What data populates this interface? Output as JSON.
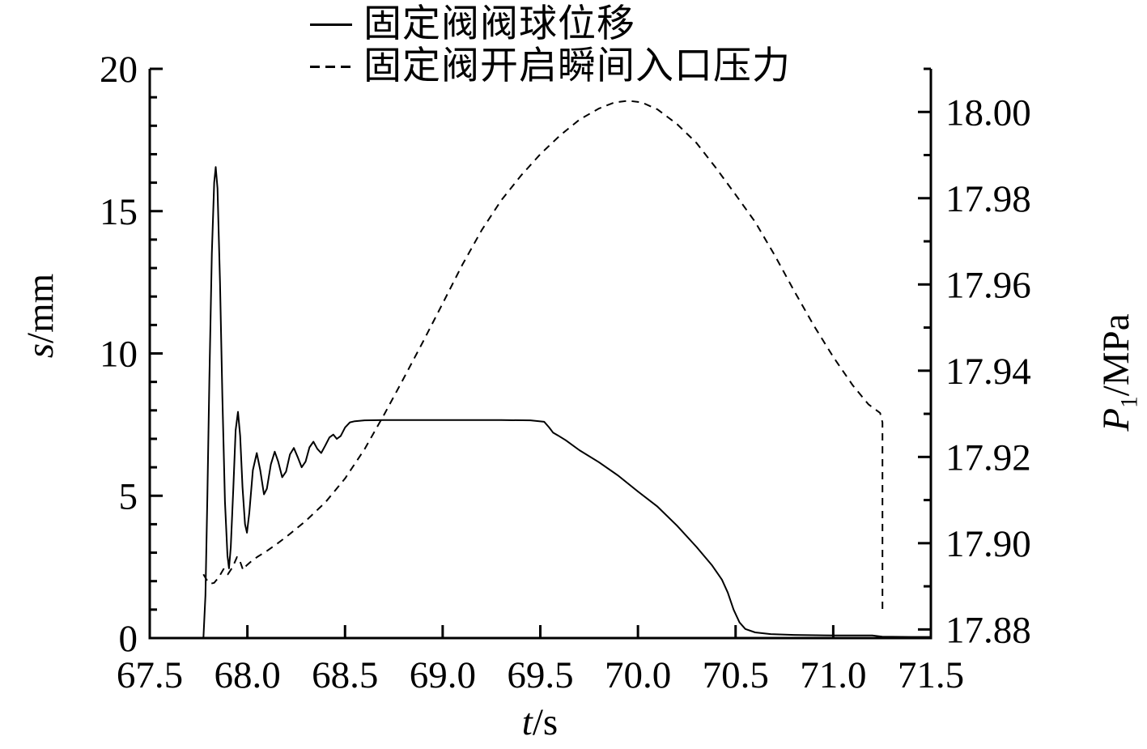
{
  "figure": {
    "background": "#ffffff",
    "ink_color": "#000000",
    "legend": [
      {
        "id": "displacement",
        "label": "固定阀阀球位移",
        "line_style": "solid"
      },
      {
        "id": "pressure",
        "label": "固定阀开启瞬间入口压力",
        "line_style": "dashed"
      }
    ]
  },
  "chart_data": {
    "type": "line",
    "title": "",
    "legend_position": "top-center",
    "grid": false,
    "x_axis": {
      "label": "t/s",
      "label_italic": "t",
      "label_rest": "/s",
      "min": 67.5,
      "max": 71.5,
      "major_ticks": [
        {
          "v": 67.5,
          "t": "67.5"
        },
        {
          "v": 68.0,
          "t": "68.0"
        },
        {
          "v": 68.5,
          "t": "68.5"
        },
        {
          "v": 69.0,
          "t": "69.0"
        },
        {
          "v": 69.5,
          "t": "69.5"
        },
        {
          "v": 70.0,
          "t": "70.0"
        },
        {
          "v": 70.5,
          "t": "70.5"
        },
        {
          "v": 71.0,
          "t": "71.0"
        },
        {
          "v": 71.5,
          "t": "71.5"
        }
      ]
    },
    "y_axis_left": {
      "label": "s/mm",
      "label_italic": "s",
      "label_rest": "/mm",
      "min": 0,
      "max": 20,
      "major_ticks": [
        {
          "v": 0,
          "t": "0"
        },
        {
          "v": 5,
          "t": "5"
        },
        {
          "v": 10,
          "t": "10"
        },
        {
          "v": 15,
          "t": "15"
        },
        {
          "v": 20,
          "t": "20"
        }
      ],
      "minor_tick_step": 1
    },
    "y_axis_right": {
      "label": "P1/MPa",
      "label_italic": "P",
      "label_sub": "1",
      "label_rest": "/MPa",
      "min": 17.878,
      "max": 18.01,
      "major_ticks": [
        {
          "v": 17.88,
          "t": "17.88"
        },
        {
          "v": 17.9,
          "t": "17.90"
        },
        {
          "v": 17.92,
          "t": "17.92"
        },
        {
          "v": 17.94,
          "t": "17.94"
        },
        {
          "v": 17.96,
          "t": "17.96"
        },
        {
          "v": 17.98,
          "t": "17.98"
        },
        {
          "v": 18.0,
          "t": "18.00"
        }
      ],
      "minor_ticks": [
        17.89,
        17.91,
        17.93,
        17.95,
        17.97,
        17.99,
        18.01
      ]
    },
    "series": [
      {
        "id": "displacement",
        "name": "固定阀阀球位移",
        "axis": "left",
        "style": "solid",
        "color": "#000000",
        "points": [
          [
            67.775,
            0.0
          ],
          [
            67.785,
            1.5
          ],
          [
            67.795,
            5.0
          ],
          [
            67.805,
            9.0
          ],
          [
            67.818,
            13.5
          ],
          [
            67.83,
            16.0
          ],
          [
            67.838,
            16.55
          ],
          [
            67.847,
            15.8
          ],
          [
            67.86,
            12.5
          ],
          [
            67.872,
            8.5
          ],
          [
            67.885,
            4.8
          ],
          [
            67.898,
            2.9
          ],
          [
            67.906,
            2.45
          ],
          [
            67.915,
            3.2
          ],
          [
            67.928,
            5.3
          ],
          [
            67.94,
            7.3
          ],
          [
            67.952,
            7.95
          ],
          [
            67.963,
            7.1
          ],
          [
            67.975,
            5.3
          ],
          [
            67.988,
            4.0
          ],
          [
            67.998,
            3.7
          ],
          [
            68.01,
            4.4
          ],
          [
            68.028,
            5.9
          ],
          [
            68.048,
            6.5
          ],
          [
            68.066,
            5.9
          ],
          [
            68.085,
            5.05
          ],
          [
            68.1,
            5.25
          ],
          [
            68.12,
            6.1
          ],
          [
            68.14,
            6.55
          ],
          [
            68.158,
            6.2
          ],
          [
            68.178,
            5.65
          ],
          [
            68.198,
            5.85
          ],
          [
            68.218,
            6.45
          ],
          [
            68.238,
            6.68
          ],
          [
            68.258,
            6.35
          ],
          [
            68.278,
            6.0
          ],
          [
            68.298,
            6.2
          ],
          [
            68.318,
            6.7
          ],
          [
            68.338,
            6.9
          ],
          [
            68.358,
            6.65
          ],
          [
            68.378,
            6.5
          ],
          [
            68.398,
            6.75
          ],
          [
            68.42,
            7.05
          ],
          [
            68.44,
            7.15
          ],
          [
            68.458,
            7.0
          ],
          [
            68.478,
            7.1
          ],
          [
            68.5,
            7.4
          ],
          [
            68.525,
            7.58
          ],
          [
            68.55,
            7.62
          ],
          [
            68.6,
            7.65
          ],
          [
            68.7,
            7.66
          ],
          [
            68.9,
            7.66
          ],
          [
            69.1,
            7.66
          ],
          [
            69.3,
            7.66
          ],
          [
            69.45,
            7.65
          ],
          [
            69.52,
            7.6
          ],
          [
            69.545,
            7.4
          ],
          [
            69.565,
            7.22
          ],
          [
            69.59,
            7.12
          ],
          [
            69.63,
            6.95
          ],
          [
            69.7,
            6.6
          ],
          [
            69.8,
            6.18
          ],
          [
            69.9,
            5.7
          ],
          [
            70.0,
            5.15
          ],
          [
            70.1,
            4.62
          ],
          [
            70.2,
            3.95
          ],
          [
            70.3,
            3.2
          ],
          [
            70.38,
            2.55
          ],
          [
            70.43,
            2.05
          ],
          [
            70.46,
            1.6
          ],
          [
            70.49,
            1.0
          ],
          [
            70.52,
            0.55
          ],
          [
            70.55,
            0.32
          ],
          [
            70.6,
            0.2
          ],
          [
            70.68,
            0.14
          ],
          [
            70.8,
            0.11
          ],
          [
            71.0,
            0.09
          ],
          [
            71.2,
            0.09
          ],
          [
            71.25,
            0.05
          ],
          [
            71.4,
            0.04
          ],
          [
            71.5,
            0.04
          ]
        ]
      },
      {
        "id": "pressure",
        "name": "固定阀开启瞬间入口压力",
        "axis": "right",
        "style": "dashed",
        "color": "#000000",
        "points": [
          [
            67.775,
            17.8928
          ],
          [
            67.79,
            17.8916
          ],
          [
            67.81,
            17.8906
          ],
          [
            67.83,
            17.8908
          ],
          [
            67.855,
            17.8922
          ],
          [
            67.878,
            17.894
          ],
          [
            67.9,
            17.8928
          ],
          [
            67.925,
            17.8945
          ],
          [
            67.947,
            17.8968
          ],
          [
            67.962,
            17.8958
          ],
          [
            67.978,
            17.8938
          ],
          [
            67.995,
            17.8948
          ],
          [
            68.02,
            17.8958
          ],
          [
            68.05,
            17.8968
          ],
          [
            68.1,
            17.8982
          ],
          [
            68.15,
            17.8998
          ],
          [
            68.2,
            17.9015
          ],
          [
            68.3,
            17.9052
          ],
          [
            68.4,
            17.9095
          ],
          [
            68.5,
            17.915
          ],
          [
            68.6,
            17.9218
          ],
          [
            68.7,
            17.9298
          ],
          [
            68.8,
            17.9382
          ],
          [
            68.9,
            17.9468
          ],
          [
            69.0,
            17.9556
          ],
          [
            69.1,
            17.9645
          ],
          [
            69.2,
            17.9726
          ],
          [
            69.3,
            17.9795
          ],
          [
            69.4,
            17.9852
          ],
          [
            69.5,
            17.9902
          ],
          [
            69.6,
            17.9945
          ],
          [
            69.7,
            17.9982
          ],
          [
            69.8,
            18.0008
          ],
          [
            69.88,
            18.0022
          ],
          [
            69.95,
            18.0026
          ],
          [
            70.02,
            18.0022
          ],
          [
            70.1,
            18.0006
          ],
          [
            70.2,
            17.9972
          ],
          [
            70.3,
            17.9928
          ],
          [
            70.4,
            17.987
          ],
          [
            70.5,
            17.9808
          ],
          [
            70.6,
            17.9745
          ],
          [
            70.7,
            17.9668
          ],
          [
            70.8,
            17.9585
          ],
          [
            70.9,
            17.9505
          ],
          [
            71.0,
            17.9432
          ],
          [
            71.1,
            17.9366
          ],
          [
            71.18,
            17.9322
          ],
          [
            71.24,
            17.9302
          ],
          [
            71.252,
            17.928
          ],
          [
            71.252,
            17.8838
          ]
        ]
      }
    ]
  }
}
